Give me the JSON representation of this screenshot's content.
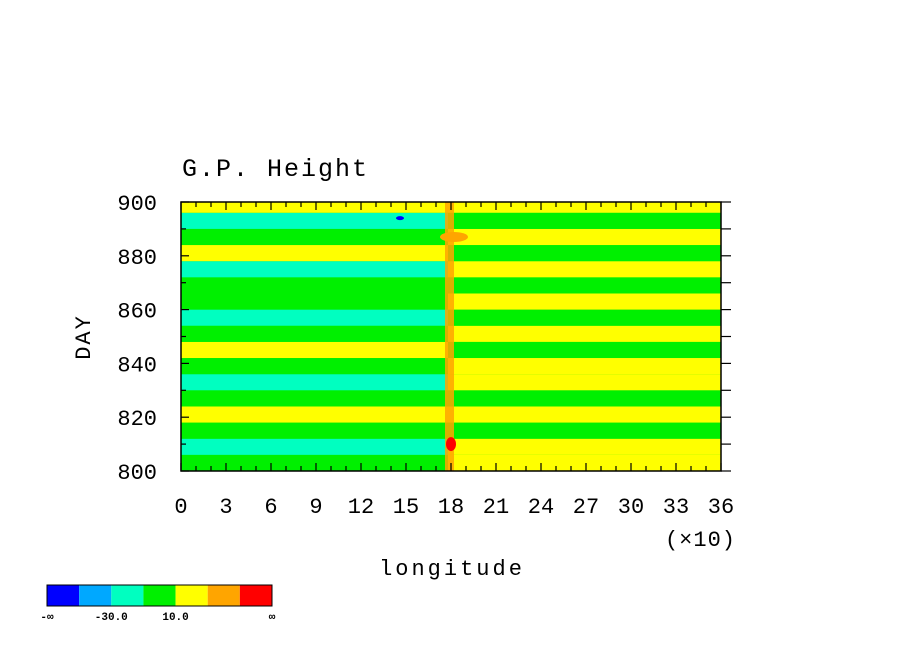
{
  "chart_data": {
    "type": "heatmap",
    "title": "G.P. Height",
    "xlabel": "longitude",
    "ylabel": "DAY",
    "x_multiplier_label": "(×10)",
    "xlim": [
      0,
      36
    ],
    "ylim": [
      800,
      900
    ],
    "x_ticks": [
      "0",
      "3",
      "6",
      "9",
      "12",
      "15",
      "18",
      "21",
      "24",
      "27",
      "30",
      "33",
      "36"
    ],
    "y_ticks": [
      "800",
      "820",
      "840",
      "860",
      "880",
      "900"
    ],
    "colorbar": {
      "colors": [
        "#0000ff",
        "#00a8ff",
        "#00ffc0",
        "#00f000",
        "#ffff00",
        "#ffa500",
        "#ff0000"
      ],
      "labels": [
        "-∞",
        "-30.0",
        "10.0",
        "∞"
      ]
    },
    "field_note_bands": [
      {
        "day_start": 800,
        "day_end": 806,
        "west_class": 3,
        "east_class": 4
      },
      {
        "day_start": 806,
        "day_end": 812,
        "west_class": 2,
        "east_class": 4
      },
      {
        "day_start": 812,
        "day_end": 818,
        "west_class": 3,
        "east_class": 3
      },
      {
        "day_start": 818,
        "day_end": 824,
        "west_class": 4,
        "east_class": 4
      },
      {
        "day_start": 824,
        "day_end": 830,
        "west_class": 3,
        "east_class": 3
      },
      {
        "day_start": 830,
        "day_end": 836,
        "west_class": 2,
        "east_class": 4
      },
      {
        "day_start": 836,
        "day_end": 842,
        "west_class": 3,
        "east_class": 4
      },
      {
        "day_start": 842,
        "day_end": 848,
        "west_class": 4,
        "east_class": 3
      },
      {
        "day_start": 848,
        "day_end": 854,
        "west_class": 3,
        "east_class": 4
      },
      {
        "day_start": 854,
        "day_end": 860,
        "west_class": 2,
        "east_class": 3
      },
      {
        "day_start": 860,
        "day_end": 866,
        "west_class": 3,
        "east_class": 4
      },
      {
        "day_start": 866,
        "day_end": 872,
        "west_class": 3,
        "east_class": 3
      },
      {
        "day_start": 872,
        "day_end": 878,
        "west_class": 2,
        "east_class": 4
      },
      {
        "day_start": 878,
        "day_end": 884,
        "west_class": 4,
        "east_class": 3
      },
      {
        "day_start": 884,
        "day_end": 890,
        "west_class": 3,
        "east_class": 4
      },
      {
        "day_start": 890,
        "day_end": 896,
        "west_class": 2,
        "east_class": 3
      },
      {
        "day_start": 896,
        "day_end": 900,
        "west_class": 4,
        "east_class": 4
      }
    ],
    "grid": false,
    "legend": "bottom-left"
  }
}
